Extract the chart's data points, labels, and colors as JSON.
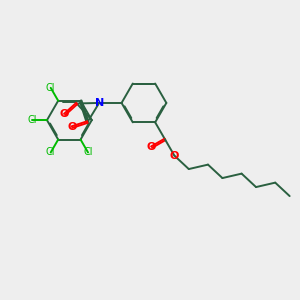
{
  "bg_color": "#eeeeee",
  "bond_color": "#2a6040",
  "n_color": "#0000ff",
  "o_color": "#ff0000",
  "cl_color": "#00bb00",
  "bond_lw": 1.4,
  "cl_fontsize": 7.0,
  "no_fontsize": 8.0,
  "xlim": [
    0,
    10
  ],
  "ylim": [
    0,
    10
  ],
  "figsize": [
    3.0,
    3.0
  ],
  "dpi": 100
}
